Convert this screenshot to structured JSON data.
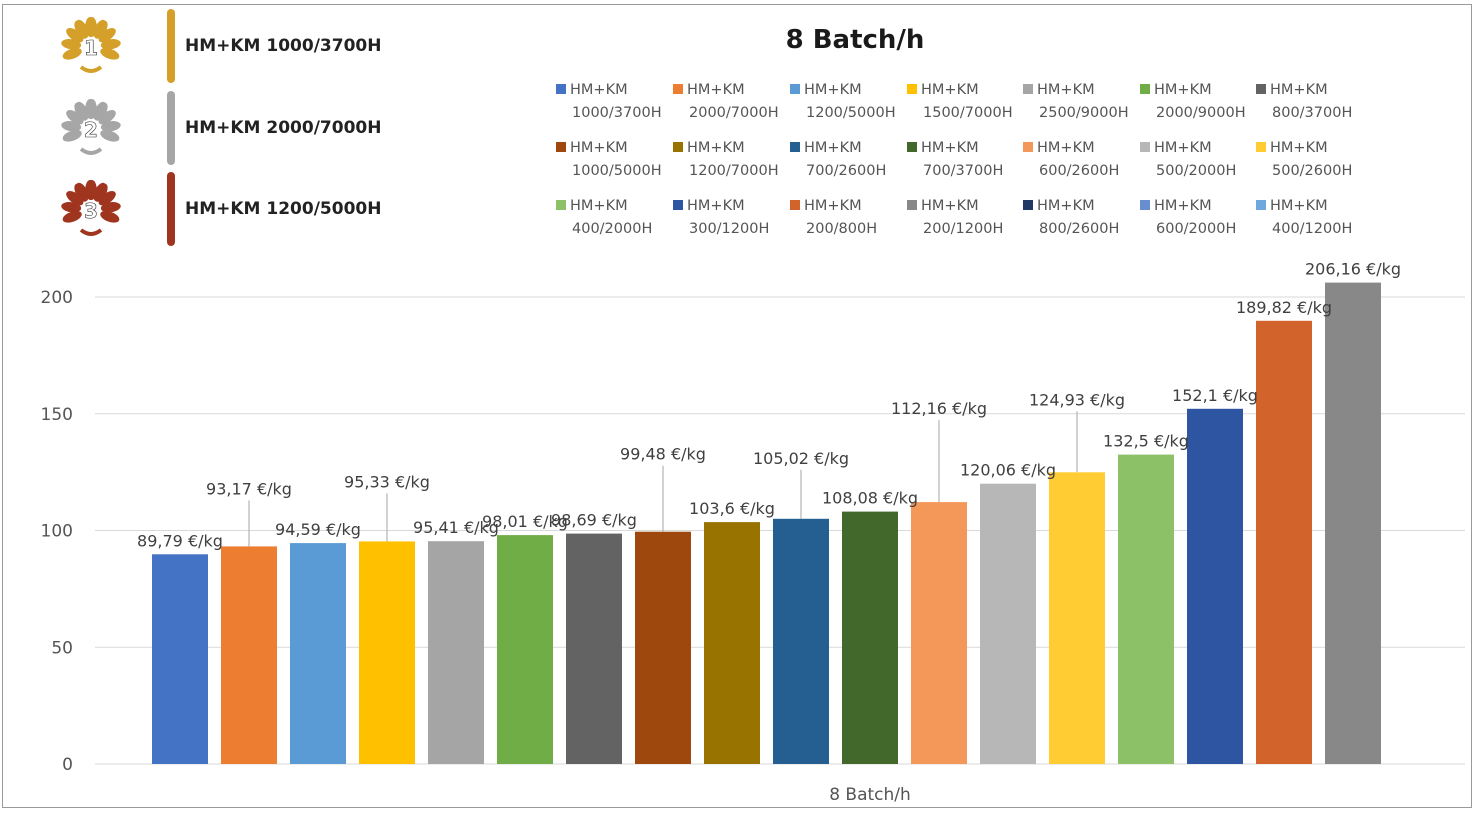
{
  "ranking": [
    {
      "rank": "1",
      "label": "HM+KM 1000/3700H",
      "color": "#D4A02A"
    },
    {
      "rank": "2",
      "label": "HM+KM 2000/7000H",
      "color": "#A6A6A6"
    },
    {
      "rank": "3",
      "label": "HM+KM 1200/5000H",
      "color": "#A0351F"
    }
  ],
  "chart_data": {
    "type": "bar",
    "title": "8 Batch/h",
    "xlabel": "8 Batch/h",
    "ylabel": "",
    "ylim": [
      0,
      200
    ],
    "yticks": [
      "0",
      "50",
      "100",
      "150",
      "200"
    ],
    "grid": true,
    "legend_position": "top-right",
    "series": [
      {
        "name_line1": "HM+KM",
        "name_line2": "1000/3700H",
        "value": 89.79,
        "label": "89,79 €/kg",
        "color": "#4472C4"
      },
      {
        "name_line1": "HM+KM",
        "name_line2": "2000/7000H",
        "value": 93.17,
        "label": "93,17 €/kg",
        "color": "#ED7D31"
      },
      {
        "name_line1": "HM+KM",
        "name_line2": "1200/5000H",
        "value": 94.59,
        "label": "94,59 €/kg",
        "color": "#5B9BD5"
      },
      {
        "name_line1": "HM+KM",
        "name_line2": "1500/7000H",
        "value": 95.33,
        "label": "95,33 €/kg",
        "color": "#FFC000"
      },
      {
        "name_line1": "HM+KM",
        "name_line2": "2500/9000H",
        "value": 95.41,
        "label": "95,41 €/kg",
        "color": "#A5A5A5"
      },
      {
        "name_line1": "HM+KM",
        "name_line2": "2000/9000H",
        "value": 98.01,
        "label": "98,01 €/kg",
        "color": "#70AD47"
      },
      {
        "name_line1": "HM+KM",
        "name_line2": "800/3700H",
        "value": 98.69,
        "label": "98,69 €/kg",
        "color": "#636363"
      },
      {
        "name_line1": "HM+KM",
        "name_line2": "1000/5000H",
        "value": 99.48,
        "label": "99,48 €/kg",
        "color": "#9E480E"
      },
      {
        "name_line1": "HM+KM",
        "name_line2": "1200/7000H",
        "value": 103.6,
        "label": "103,6 €/kg",
        "color": "#997300"
      },
      {
        "name_line1": "HM+KM",
        "name_line2": "700/2600H",
        "value": 105.02,
        "label": "105,02 €/kg",
        "color": "#255E91"
      },
      {
        "name_line1": "HM+KM",
        "name_line2": "700/3700H",
        "value": 108.08,
        "label": "108,08 €/kg",
        "color": "#43682B"
      },
      {
        "name_line1": "HM+KM",
        "name_line2": "600/2600H",
        "value": 112.16,
        "label": "112,16 €/kg",
        "color": "#F4985A"
      },
      {
        "name_line1": "HM+KM",
        "name_line2": "500/2000H",
        "value": 120.06,
        "label": "120,06 €/kg",
        "color": "#B7B7B7"
      },
      {
        "name_line1": "HM+KM",
        "name_line2": "500/2600H",
        "value": 124.93,
        "label": "124,93 €/kg",
        "color": "#FFCD33"
      },
      {
        "name_line1": "HM+KM",
        "name_line2": "400/2000H",
        "value": 132.5,
        "label": "132,5 €/kg",
        "color": "#8CC168"
      },
      {
        "name_line1": "HM+KM",
        "name_line2": "300/1200H",
        "value": 152.1,
        "label": "152,1 €/kg",
        "color": "#2E55A1"
      },
      {
        "name_line1": "HM+KM",
        "name_line2": "200/800H",
        "value": 189.82,
        "label": "189,82 €/kg",
        "color": "#D2632A"
      },
      {
        "name_line1": "HM+KM",
        "name_line2": "200/1200H",
        "value": 206.16,
        "label": "206,16 €/kg",
        "color": "#888888"
      },
      {
        "name_line1": "HM+KM",
        "name_line2": "800/2600H",
        "value": null,
        "label": "",
        "color": "#203864"
      },
      {
        "name_line1": "HM+KM",
        "name_line2": "600/2000H",
        "value": null,
        "label": "",
        "color": "#698ED0"
      },
      {
        "name_line1": "HM+KM",
        "name_line2": "400/1200H",
        "value": null,
        "label": "",
        "color": "#6FA8DC"
      }
    ]
  }
}
